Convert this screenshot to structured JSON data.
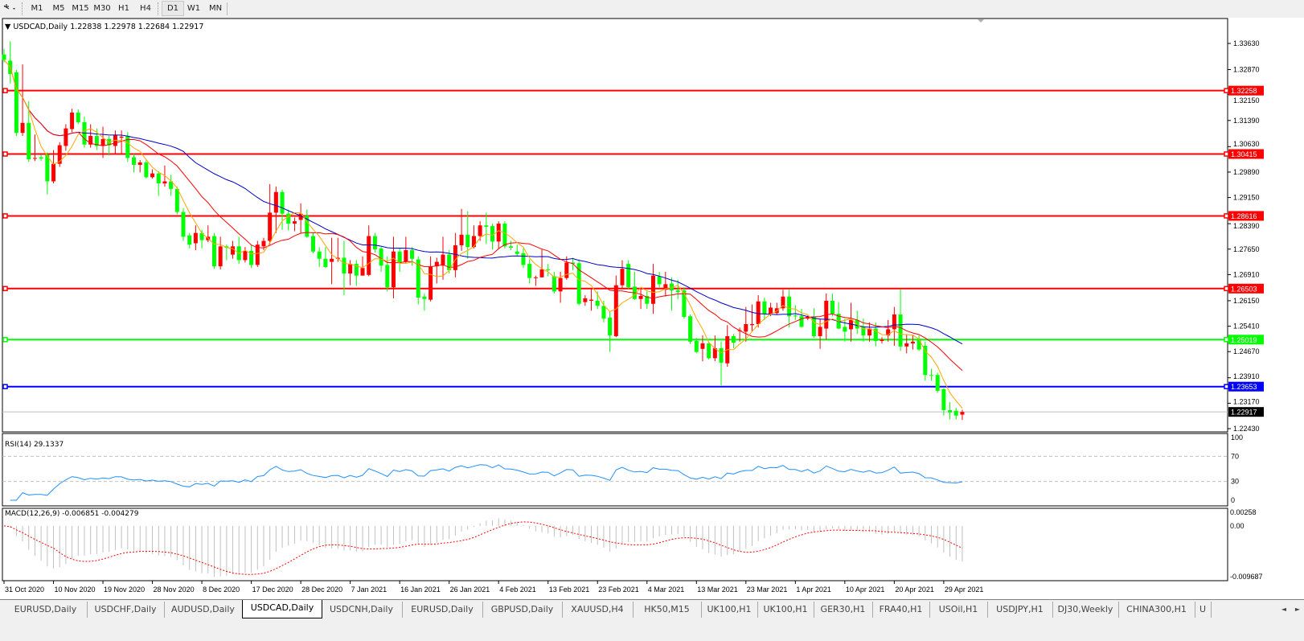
{
  "toolbar": {
    "tool_icon": "cursor-crosshair-icon",
    "timeframes": [
      {
        "label": "M1",
        "active": false
      },
      {
        "label": "M5",
        "active": false
      },
      {
        "label": "M15",
        "active": false
      },
      {
        "label": "M30",
        "active": false
      },
      {
        "label": "H1",
        "active": false
      },
      {
        "label": "H4",
        "active": false
      },
      {
        "label": "D1",
        "active": true
      },
      {
        "label": "W1",
        "active": false
      },
      {
        "label": "MN",
        "active": false
      }
    ]
  },
  "chart": {
    "symbol": "USDCAD,Daily",
    "ohlc": "1.22838 1.22978 1.22684 1.22917",
    "rsi_label": "RSI(14) 29.1337",
    "macd_label": "MACD(12,26,9) -0.006851 -0.004279",
    "colors": {
      "bull": "#ff0000",
      "bear": "#00ff00",
      "ma_fast": "#ffa500",
      "ma_mid": "#ff0000",
      "ma_slow": "#0000c8",
      "rsi": "#1e90ff",
      "macd_hist": "#c0c0c0",
      "macd_signal": "#ff0000"
    }
  },
  "chart_data": {
    "type": "candlestick",
    "price_axis_ticks": [
      "1.33630",
      "1.32870",
      "1.32150",
      "1.31390",
      "1.30630",
      "1.29890",
      "1.29150",
      "1.28390",
      "1.27650",
      "1.26910",
      "1.26150",
      "1.25410",
      "1.24670",
      "1.23910",
      "1.23170",
      "1.22430"
    ],
    "ylim": [
      1.2243,
      1.3363
    ],
    "date_labels": [
      "31 Oct 2020",
      "10 Nov 2020",
      "19 Nov 2020",
      "28 Nov 2020",
      "8 Dec 2020",
      "17 Dec 2020",
      "28 Dec 2020",
      "7 Jan 2021",
      "16 Jan 2021",
      "26 Jan 2021",
      "4 Feb 2021",
      "13 Feb 2021",
      "23 Feb 2021",
      "4 Mar 2021",
      "13 Mar 2021",
      "23 Mar 2021",
      "1 Apr 2021",
      "10 Apr 2021",
      "20 Apr 2021",
      "29 Apr 2021"
    ],
    "levels": [
      {
        "price": "1.32258",
        "color": "#ff0000"
      },
      {
        "price": "1.30415",
        "color": "#ff0000"
      },
      {
        "price": "1.28616",
        "color": "#ff0000"
      },
      {
        "price": "1.26503",
        "color": "#ff0000"
      },
      {
        "price": "1.25019",
        "color": "#00ff00"
      },
      {
        "price": "1.23653",
        "color": "#0000ff"
      }
    ],
    "current_price": "1.22917",
    "rsi_axis": [
      "100",
      "70",
      "30",
      "0"
    ],
    "macd_axis": [
      "0.00258",
      "0.00",
      "-0.009687"
    ],
    "bars_ohlc": [
      [
        1.3331,
        1.3347,
        1.3308,
        1.3315
      ],
      [
        1.3313,
        1.3369,
        1.3247,
        1.3274
      ],
      [
        1.3279,
        1.3286,
        1.3094,
        1.3103
      ],
      [
        1.3103,
        1.3302,
        1.3094,
        1.3132
      ],
      [
        1.3132,
        1.3195,
        1.3019,
        1.3026
      ],
      [
        1.3028,
        1.3098,
        1.3021,
        1.303
      ],
      [
        1.3032,
        1.3039,
        1.3021,
        1.3028
      ],
      [
        1.3039,
        1.3046,
        1.2924,
        1.2962
      ],
      [
        1.2962,
        1.3053,
        1.2956,
        1.3013
      ],
      [
        1.3013,
        1.3076,
        1.3004,
        1.3067
      ],
      [
        1.3065,
        1.3128,
        1.3051,
        1.3116
      ],
      [
        1.3114,
        1.3173,
        1.3105,
        1.3162
      ],
      [
        1.3162,
        1.3171,
        1.3128,
        1.3134
      ],
      [
        1.3134,
        1.315,
        1.306,
        1.3069
      ],
      [
        1.3069,
        1.3128,
        1.306,
        1.3094
      ],
      [
        1.3094,
        1.3116,
        1.3053,
        1.3065
      ],
      [
        1.3065,
        1.3121,
        1.303,
        1.3085
      ],
      [
        1.3085,
        1.3094,
        1.3037,
        1.3067
      ],
      [
        1.3065,
        1.311,
        1.3042,
        1.3096
      ],
      [
        1.3089,
        1.311,
        1.3042,
        1.3092
      ],
      [
        1.3094,
        1.3105,
        1.3019,
        1.303
      ],
      [
        1.3032,
        1.3042,
        1.2988,
        1.301
      ],
      [
        1.301,
        1.3024,
        1.2988,
        1.3017
      ],
      [
        1.3017,
        1.3026,
        1.297,
        1.2974
      ],
      [
        1.2974,
        1.2997,
        1.297,
        1.2985
      ],
      [
        1.2985,
        1.2992,
        1.292,
        1.2956
      ],
      [
        1.2956,
        1.3008,
        1.2947,
        1.2962
      ],
      [
        1.2962,
        1.2981,
        1.292,
        1.294
      ],
      [
        1.294,
        1.2947,
        1.2866,
        1.2873
      ],
      [
        1.2873,
        1.2884,
        1.2789,
        1.2801
      ],
      [
        1.2805,
        1.2812,
        1.2767,
        1.2778
      ],
      [
        1.2782,
        1.2834,
        1.2762,
        1.2812
      ],
      [
        1.2812,
        1.2821,
        1.2767,
        1.2791
      ],
      [
        1.2791,
        1.2834,
        1.2785,
        1.2801
      ],
      [
        1.2803,
        1.2812,
        1.2708,
        1.2715
      ],
      [
        1.2715,
        1.2801,
        1.2706,
        1.2773
      ],
      [
        1.2773,
        1.2778,
        1.2733,
        1.2769
      ],
      [
        1.2749,
        1.2789,
        1.2737,
        1.2773
      ],
      [
        1.2773,
        1.2801,
        1.2722,
        1.2733
      ],
      [
        1.2733,
        1.2771,
        1.2726,
        1.276
      ],
      [
        1.276,
        1.2778,
        1.271,
        1.2719
      ],
      [
        1.2719,
        1.2789,
        1.2713,
        1.2778
      ],
      [
        1.2773,
        1.2798,
        1.2762,
        1.2789
      ],
      [
        1.2789,
        1.2954,
        1.2778,
        1.2871
      ],
      [
        1.2871,
        1.2947,
        1.2812,
        1.2931
      ],
      [
        1.2931,
        1.2938,
        1.2821,
        1.2868
      ],
      [
        1.2868,
        1.288,
        1.2819,
        1.2839
      ],
      [
        1.2839,
        1.2857,
        1.2817,
        1.2846
      ],
      [
        1.285,
        1.2898,
        1.2812,
        1.2868
      ],
      [
        1.2862,
        1.288,
        1.2798,
        1.2801
      ],
      [
        1.2803,
        1.2812,
        1.2753,
        1.2758
      ],
      [
        1.2758,
        1.2771,
        1.2713,
        1.2737
      ],
      [
        1.2737,
        1.2771,
        1.271,
        1.2713
      ],
      [
        1.2728,
        1.2798,
        1.2663,
        1.2737
      ],
      [
        1.2737,
        1.2798,
        1.2728,
        1.274
      ],
      [
        1.274,
        1.2789,
        1.2631,
        1.2694
      ],
      [
        1.2694,
        1.2733,
        1.266,
        1.2722
      ],
      [
        1.2722,
        1.2733,
        1.2658,
        1.2688
      ],
      [
        1.2688,
        1.2744,
        1.2688,
        1.271
      ],
      [
        1.269,
        1.2834,
        1.2686,
        1.2803
      ],
      [
        1.2803,
        1.2812,
        1.2755,
        1.2764
      ],
      [
        1.2767,
        1.2771,
        1.2699,
        1.2717
      ],
      [
        1.2719,
        1.2744,
        1.2642,
        1.2654
      ],
      [
        1.2654,
        1.2801,
        1.2622,
        1.2758
      ],
      [
        1.2758,
        1.2767,
        1.2699,
        1.2726
      ],
      [
        1.2728,
        1.2801,
        1.2722,
        1.2762
      ],
      [
        1.2762,
        1.2771,
        1.2717,
        1.2737
      ],
      [
        1.2735,
        1.2744,
        1.2604,
        1.2624
      ],
      [
        1.2627,
        1.2636,
        1.2586,
        1.262
      ],
      [
        1.2618,
        1.2744,
        1.2613,
        1.2715
      ],
      [
        1.2715,
        1.274,
        1.2665,
        1.2728
      ],
      [
        1.2717,
        1.2801,
        1.2676,
        1.2749
      ],
      [
        1.2749,
        1.2762,
        1.2694,
        1.2704
      ],
      [
        1.2704,
        1.2812,
        1.2683,
        1.2776
      ],
      [
        1.2776,
        1.2882,
        1.276,
        1.2807
      ],
      [
        1.2807,
        1.2875,
        1.2737,
        1.2771
      ],
      [
        1.2771,
        1.2834,
        1.2767,
        1.2803
      ],
      [
        1.2803,
        1.2846,
        1.2789,
        1.2834
      ],
      [
        1.2834,
        1.2871,
        1.278,
        1.283
      ],
      [
        1.2832,
        1.2839,
        1.2764,
        1.2787
      ],
      [
        1.2787,
        1.2846,
        1.2767,
        1.2839
      ],
      [
        1.2839,
        1.2846,
        1.2767,
        1.2773
      ],
      [
        1.2773,
        1.2789,
        1.2762,
        1.2769
      ],
      [
        1.2758,
        1.2778,
        1.2744,
        1.2751
      ],
      [
        1.2753,
        1.2767,
        1.271,
        1.2719
      ],
      [
        1.2722,
        1.2735,
        1.2665,
        1.2681
      ],
      [
        1.2681,
        1.2688,
        1.2658,
        1.2683
      ],
      [
        1.2683,
        1.2764,
        1.2683,
        1.2706
      ],
      [
        1.2706,
        1.2722,
        1.2686,
        1.2704
      ],
      [
        1.2686,
        1.2699,
        1.2636,
        1.2642
      ],
      [
        1.2642,
        1.2699,
        1.2609,
        1.2681
      ],
      [
        1.2681,
        1.2744,
        1.2676,
        1.2726
      ],
      [
        1.2726,
        1.274,
        1.2704,
        1.2722
      ],
      [
        1.2724,
        1.2735,
        1.2602,
        1.2606
      ],
      [
        1.2611,
        1.2631,
        1.26,
        1.2622
      ],
      [
        1.2615,
        1.2649,
        1.2586,
        1.2618
      ],
      [
        1.2615,
        1.2642,
        1.2591,
        1.26
      ],
      [
        1.26,
        1.2615,
        1.2552,
        1.2563
      ],
      [
        1.2566,
        1.2582,
        1.2466,
        1.2514
      ],
      [
        1.2512,
        1.2688,
        1.2509,
        1.266
      ],
      [
        1.266,
        1.2733,
        1.2649,
        1.2708
      ],
      [
        1.2722,
        1.2733,
        1.2649,
        1.2654
      ],
      [
        1.2656,
        1.2699,
        1.2618,
        1.262
      ],
      [
        1.262,
        1.2654,
        1.2591,
        1.2629
      ],
      [
        1.2629,
        1.2642,
        1.2591,
        1.2606
      ],
      [
        1.2606,
        1.2722,
        1.2577,
        1.2688
      ],
      [
        1.2686,
        1.2699,
        1.2654,
        1.2663
      ],
      [
        1.2647,
        1.2699,
        1.2627,
        1.2663
      ],
      [
        1.2665,
        1.2683,
        1.2586,
        1.2645
      ],
      [
        1.2645,
        1.2676,
        1.262,
        1.264
      ],
      [
        1.2645,
        1.2654,
        1.2563,
        1.2568
      ],
      [
        1.257,
        1.2575,
        1.2489,
        1.2496
      ],
      [
        1.2498,
        1.2507,
        1.2462,
        1.2466
      ],
      [
        1.2475,
        1.2514,
        1.2439,
        1.2491
      ],
      [
        1.2491,
        1.2496,
        1.2444,
        1.2448
      ],
      [
        1.2448,
        1.2514,
        1.2439,
        1.2477
      ],
      [
        1.2477,
        1.2496,
        1.2369,
        1.2435
      ],
      [
        1.2433,
        1.2544,
        1.2423,
        1.2512
      ],
      [
        1.2512,
        1.2518,
        1.2477,
        1.2493
      ],
      [
        1.2527,
        1.2537,
        1.2496,
        1.2529
      ],
      [
        1.2525,
        1.2597,
        1.2496,
        1.2547
      ],
      [
        1.2544,
        1.2604,
        1.2525,
        1.2547
      ],
      [
        1.2547,
        1.2631,
        1.2537,
        1.2613
      ],
      [
        1.2613,
        1.2624,
        1.2559,
        1.2577
      ],
      [
        1.2577,
        1.2609,
        1.257,
        1.2595
      ],
      [
        1.2579,
        1.2609,
        1.2575,
        1.2593
      ],
      [
        1.2593,
        1.2647,
        1.2586,
        1.2627
      ],
      [
        1.2627,
        1.2647,
        1.2537,
        1.257
      ],
      [
        1.2572,
        1.2602,
        1.2559,
        1.257
      ],
      [
        1.257,
        1.2591,
        1.2537,
        1.2539
      ],
      [
        1.2563,
        1.2572,
        1.2559,
        1.2568
      ],
      [
        1.2568,
        1.2593,
        1.2507,
        1.2512
      ],
      [
        1.2512,
        1.2563,
        1.2475,
        1.2539
      ],
      [
        1.2534,
        1.2636,
        1.2502,
        1.2615
      ],
      [
        1.2615,
        1.2636,
        1.257,
        1.2577
      ],
      [
        1.2577,
        1.2611,
        1.2532,
        1.2534
      ],
      [
        1.2539,
        1.2563,
        1.2496,
        1.2525
      ],
      [
        1.2532,
        1.2609,
        1.2496,
        1.2559
      ],
      [
        1.2559,
        1.2586,
        1.2518,
        1.2534
      ],
      [
        1.2539,
        1.2563,
        1.2496,
        1.2514
      ],
      [
        1.2514,
        1.2552,
        1.2496,
        1.2534
      ],
      [
        1.2534,
        1.2552,
        1.2482,
        1.2498
      ],
      [
        1.2498,
        1.2509,
        1.2491,
        1.2502
      ],
      [
        1.2514,
        1.2559,
        1.2496,
        1.2532
      ],
      [
        1.2532,
        1.2597,
        1.2484,
        1.2575
      ],
      [
        1.2575,
        1.2649,
        1.2469,
        1.2482
      ],
      [
        1.2482,
        1.2518,
        1.2462,
        1.2491
      ],
      [
        1.2491,
        1.2514,
        1.2473,
        1.2496
      ],
      [
        1.2505,
        1.2514,
        1.2469,
        1.2473
      ],
      [
        1.2484,
        1.2496,
        1.2383,
        1.2399
      ],
      [
        1.2399,
        1.2417,
        1.2383,
        1.2397
      ],
      [
        1.2399,
        1.2406,
        1.2347,
        1.2353
      ],
      [
        1.2358,
        1.236,
        1.2281,
        1.2297
      ],
      [
        1.2297,
        1.232,
        1.227,
        1.229
      ],
      [
        1.2295,
        1.2304,
        1.227,
        1.2281
      ],
      [
        1.22838,
        1.22978,
        1.22684,
        1.22917
      ]
    ]
  },
  "tabs": [
    {
      "label": "EURUSD,Daily",
      "active": false
    },
    {
      "label": "USDCHF,Daily",
      "active": false
    },
    {
      "label": "AUDUSD,Daily",
      "active": false
    },
    {
      "label": "USDCAD,Daily",
      "active": true
    },
    {
      "label": "USDCNH,Daily",
      "active": false
    },
    {
      "label": "EURUSD,Daily",
      "active": false
    },
    {
      "label": "GBPUSD,Daily",
      "active": false
    },
    {
      "label": "XAUUSD,H4",
      "active": false
    },
    {
      "label": "HK50,M15",
      "active": false
    },
    {
      "label": "UK100,H1",
      "active": false
    },
    {
      "label": "UK100,H1",
      "active": false
    },
    {
      "label": "GER30,H1",
      "active": false
    },
    {
      "label": "FRA40,H1",
      "active": false
    },
    {
      "label": "USOil,H1",
      "active": false
    },
    {
      "label": "USDJPY,H1",
      "active": false
    },
    {
      "label": "DJ30,Weekly",
      "active": false
    },
    {
      "label": "CHINA300,H1",
      "active": false
    },
    {
      "label": "U",
      "active": false
    }
  ],
  "tab_scroll": {
    "left": "◄",
    "right": "►"
  }
}
